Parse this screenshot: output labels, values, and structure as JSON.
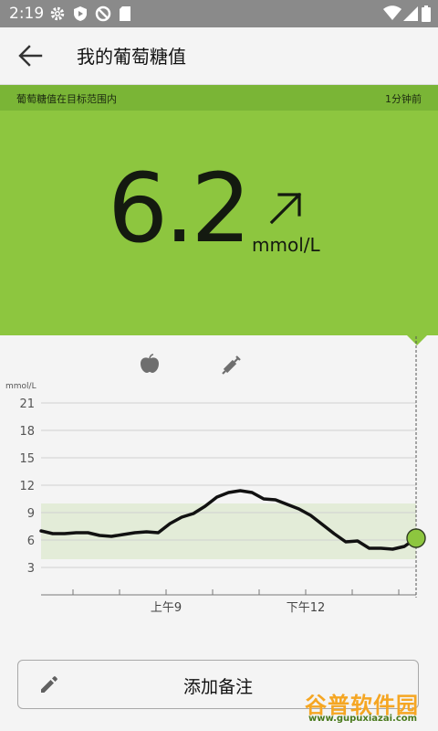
{
  "status_bar": {
    "time": "2:19"
  },
  "app_bar": {
    "title": "我的葡萄糖值"
  },
  "banner": {
    "message": "葡萄糖值在目标范围内",
    "updated": "1分钟前"
  },
  "reading": {
    "value": "6.2",
    "unit": "mmol/L",
    "trend": "rising"
  },
  "chart_data": {
    "type": "line",
    "ylabel": "mmol/L",
    "ylim": [
      0,
      21
    ],
    "yticks": [
      "21",
      "18",
      "15",
      "12",
      "9",
      "6",
      "3"
    ],
    "xtick_labels": [
      "上午9",
      "下午12"
    ],
    "target_range": [
      3.9,
      10.0
    ],
    "event_icons": [
      "apple-icon",
      "syringe-icon"
    ],
    "series": [
      {
        "values": [
          7.0,
          6.7,
          6.7,
          6.8,
          6.8,
          6.5,
          6.4,
          6.6,
          6.8,
          6.9,
          6.8,
          7.8,
          8.5,
          8.9,
          9.7,
          10.7,
          11.2,
          11.4,
          11.2,
          10.5,
          10.4,
          9.9,
          9.4,
          8.7,
          7.7,
          6.7,
          5.8,
          5.9,
          5.1,
          5.1,
          5.0,
          5.3,
          6.2
        ]
      }
    ],
    "current_value": 6.2,
    "colors": {
      "line": "#111111",
      "target_band": "#e3ecd8",
      "current_point": "#8dc63f",
      "grid": "#cfcfcf"
    }
  },
  "note_button": {
    "label": "添加备注"
  },
  "watermark": {
    "text": "谷普软件园",
    "url": "www.gupuxiazai.com"
  },
  "colors": {
    "hero": "#8dc63f",
    "banner": "#7ab536",
    "status_bar": "#8a8a8a"
  }
}
